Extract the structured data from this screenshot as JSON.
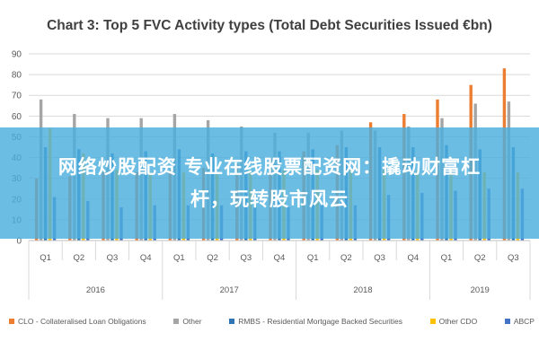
{
  "chart_data": {
    "type": "bar",
    "title": "Chart 3: Top 5 FVC Activity types (Total Debt Securities Issued €bn)",
    "ylim": [
      0,
      90
    ],
    "yticks": [
      0,
      10,
      20,
      30,
      40,
      50,
      60,
      70,
      80,
      90
    ],
    "grid": true,
    "legend_position": "bottom",
    "categories": [
      "Q1",
      "Q2",
      "Q3",
      "Q4",
      "Q1",
      "Q2",
      "Q3",
      "Q4",
      "Q1",
      "Q2",
      "Q3",
      "Q4",
      "Q1",
      "Q2",
      "Q3"
    ],
    "years": [
      {
        "label": "2016",
        "start": 0,
        "end": 3
      },
      {
        "label": "2017",
        "start": 4,
        "end": 7
      },
      {
        "label": "2018",
        "start": 8,
        "end": 11
      },
      {
        "label": "2019",
        "start": 12,
        "end": 14
      }
    ],
    "series": [
      {
        "name": "CLO - Collateralised Loan Obligations",
        "color": "#ED7D31",
        "values": [
          30,
          31,
          33,
          33,
          34,
          35,
          37,
          40,
          43,
          46,
          57,
          61,
          68,
          75,
          83
        ]
      },
      {
        "name": "Other",
        "color": "#A5A5A5",
        "values": [
          68,
          61,
          59,
          59,
          61,
          58,
          55,
          52,
          52,
          53,
          53,
          55,
          59,
          66,
          67
        ]
      },
      {
        "name": "RMBS - Residential Mortgage Backed Securities",
        "color": "#2E75B6",
        "values": [
          45,
          44,
          42,
          43,
          44,
          42,
          43,
          43,
          44,
          45,
          45,
          45,
          46,
          44,
          45
        ]
      },
      {
        "name": "Other CDO",
        "color": "#FFC000",
        "values": [
          54,
          42,
          34,
          33,
          33,
          33,
          33,
          34,
          34,
          34,
          34,
          34,
          34,
          33,
          33
        ]
      },
      {
        "name": "ABCP",
        "color": "#4472C4",
        "values": [
          21,
          19,
          16,
          17,
          17,
          17,
          16,
          16,
          17,
          17,
          22,
          23,
          24,
          25,
          25
        ]
      }
    ]
  },
  "overlay": {
    "line1": "网络炒股配资 专业在线股票配资网：撬动财富杠",
    "line2": "杆，玩转股市风云"
  }
}
